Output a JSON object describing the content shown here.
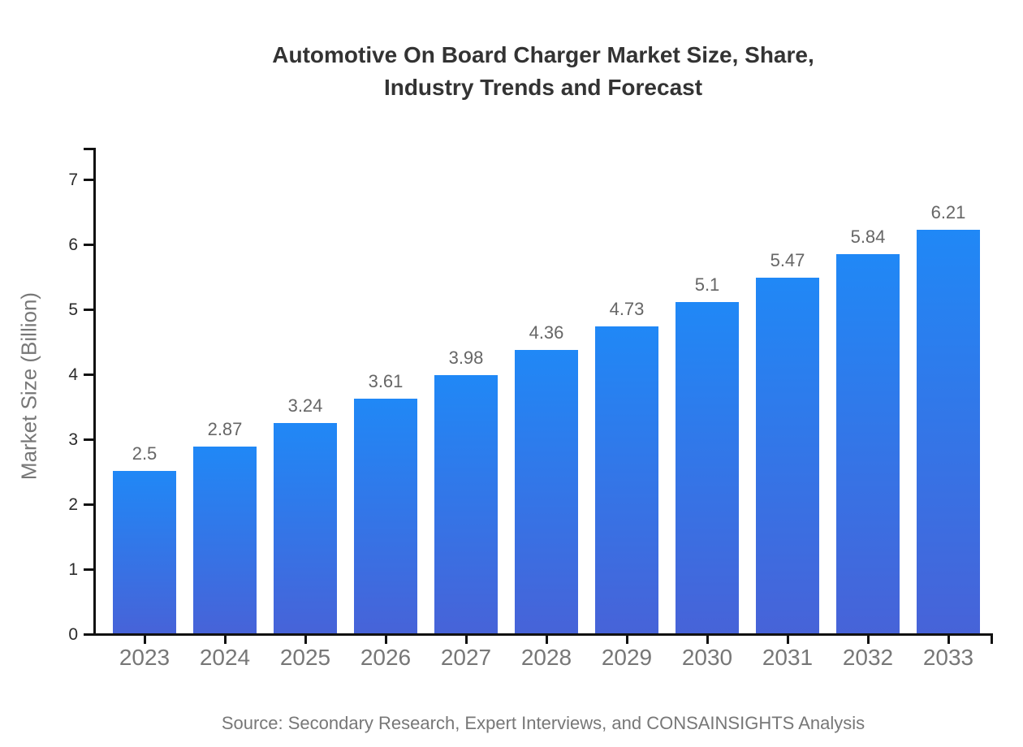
{
  "title": {
    "line1": "Automotive On Board Charger Market Size, Share,",
    "line2": "Industry Trends and Forecast"
  },
  "y_axis": {
    "label": "Market Size (Billion)"
  },
  "source_text": "Source: Secondary Research, Expert Interviews, and CONSAINSIGHTS Analysis",
  "chart_data": {
    "type": "bar",
    "title": "Automotive On Board Charger Market Size, Share, Industry Trends and Forecast",
    "categories": [
      "2023",
      "2024",
      "2025",
      "2026",
      "2027",
      "2028",
      "2029",
      "2030",
      "2031",
      "2032",
      "2033"
    ],
    "values": [
      2.5,
      2.87,
      3.24,
      3.61,
      3.98,
      4.36,
      4.73,
      5.1,
      5.47,
      5.84,
      6.21
    ],
    "data_labels": [
      "2.5",
      "2.87",
      "3.24",
      "3.61",
      "3.98",
      "4.36",
      "4.73",
      "5.1",
      "5.47",
      "5.84",
      "6.21"
    ],
    "xlabel": "",
    "ylabel": "Market Size (Billion)",
    "ylim": [
      0,
      7.5
    ],
    "yticks": [
      0,
      1,
      2,
      3,
      4,
      5,
      6,
      7
    ],
    "grid": false,
    "legend": false,
    "data_labels_shown": true,
    "colors": {
      "bar_gradient_top": "#2088f6",
      "bar_gradient_bottom": "#4763d8",
      "axis": "#111111",
      "title_text": "#333333",
      "axis_tick_text": "#2b2b2b",
      "category_text": "#777777",
      "value_label_text": "#666666",
      "source_text": "#777777"
    },
    "source": "Source: Secondary Research, Expert Interviews, and CONSAINSIGHTS Analysis"
  }
}
